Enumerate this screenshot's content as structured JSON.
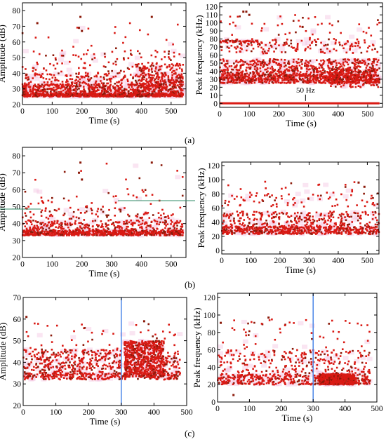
{
  "colors": {
    "points": "#d91a14",
    "dark_points": "#8b1a0a",
    "haze": "#f4c6e2",
    "vline": "#4a86e8"
  },
  "panel_labels": {
    "a": "(a)",
    "b": "(b)",
    "c": "(c)"
  },
  "chart_data": [
    {
      "type": "scatter",
      "panel": "(a)",
      "xlabel": "Time (s)",
      "ylabel": "Amplitude (dB)",
      "xlim": [
        0,
        550
      ],
      "ylim": [
        20,
        85
      ],
      "xticks": [
        0,
        100,
        200,
        300,
        400,
        500
      ],
      "yticks": [
        20,
        30,
        40,
        50,
        60,
        70,
        80
      ],
      "grid": false,
      "annotations": [],
      "bands": [
        {
          "x": [
            0,
            540
          ],
          "y": [
            25,
            27
          ],
          "n": 700
        },
        {
          "x": [
            0,
            540
          ],
          "y": [
            27,
            33
          ],
          "n": 520
        },
        {
          "x": [
            0,
            540
          ],
          "y": [
            33,
            40
          ],
          "n": 220
        },
        {
          "x": [
            380,
            540
          ],
          "y": [
            27,
            46
          ],
          "n": 180
        },
        {
          "x": [
            0,
            540
          ],
          "y": [
            40,
            55
          ],
          "n": 110
        },
        {
          "x": [
            0,
            540
          ],
          "y": [
            55,
            76
          ],
          "n": 18
        }
      ],
      "outliers": [
        {
          "x": 195,
          "y": 76
        },
        {
          "x": 435,
          "y": 76
        },
        {
          "x": 50,
          "y": 72
        },
        {
          "x": 190,
          "y": 69
        },
        {
          "x": 200,
          "y": 67
        }
      ]
    },
    {
      "type": "scatter",
      "panel": "(a)",
      "xlabel": "Time (s)",
      "ylabel": "Peak frequency (kHz)",
      "xlim": [
        0,
        550
      ],
      "ylim": [
        -5,
        125
      ],
      "xticks": [
        0,
        100,
        200,
        300,
        400,
        500
      ],
      "yticks": [
        0,
        10,
        20,
        30,
        40,
        50,
        60,
        70,
        80,
        90,
        100,
        110,
        120
      ],
      "grid": false,
      "annotations": [
        {
          "text": "50 Hz",
          "x": 290,
          "y": 3
        }
      ],
      "baseline": {
        "y": 0,
        "x": [
          0,
          540
        ]
      },
      "bands": [
        {
          "x": [
            0,
            540
          ],
          "y": [
            25,
            36
          ],
          "n": 700
        },
        {
          "x": [
            0,
            540
          ],
          "y": [
            36,
            55
          ],
          "n": 480
        },
        {
          "x": [
            0,
            540
          ],
          "y": [
            62,
            80
          ],
          "n": 160
        },
        {
          "x": [
            0,
            540
          ],
          "y": [
            80,
            110
          ],
          "n": 45
        },
        {
          "x": [
            0,
            130
          ],
          "y": [
            76,
            78
          ],
          "n": 40
        },
        {
          "x": [
            370,
            540
          ],
          "y": [
            20,
            45
          ],
          "n": 160
        }
      ],
      "outliers": [
        {
          "x": 80,
          "y": 114
        },
        {
          "x": 90,
          "y": 114
        },
        {
          "x": 100,
          "y": 110
        },
        {
          "x": 280,
          "y": 95
        }
      ]
    },
    {
      "type": "scatter",
      "panel": "(b)",
      "xlabel": "Time (s)",
      "ylabel": "Amplitude (dB)",
      "xlim": [
        0,
        550
      ],
      "ylim": [
        20,
        85
      ],
      "xticks": [
        0,
        100,
        200,
        300,
        400,
        500
      ],
      "yticks": [
        20,
        30,
        40,
        50,
        60,
        70,
        80
      ],
      "grid": false,
      "annotations": [],
      "bands": [
        {
          "x": [
            0,
            540
          ],
          "y": [
            33,
            36
          ],
          "n": 650
        },
        {
          "x": [
            0,
            540
          ],
          "y": [
            36,
            42
          ],
          "n": 260
        },
        {
          "x": [
            0,
            540
          ],
          "y": [
            42,
            50
          ],
          "n": 90
        },
        {
          "x": [
            0,
            540
          ],
          "y": [
            50,
            60
          ],
          "n": 30
        },
        {
          "x": [
            0,
            540
          ],
          "y": [
            60,
            76
          ],
          "n": 10
        }
      ],
      "outliers": [
        {
          "x": 195,
          "y": 76
        },
        {
          "x": 435,
          "y": 76
        },
        {
          "x": 190,
          "y": 70
        },
        {
          "x": 200,
          "y": 66
        }
      ]
    },
    {
      "type": "scatter",
      "panel": "(b)",
      "xlabel": "Time (s)",
      "ylabel": "Peak frequency (kHz)",
      "xlim": [
        0,
        540
      ],
      "ylim": [
        -5,
        125
      ],
      "xticks": [
        0,
        100,
        200,
        300,
        400,
        500
      ],
      "yticks": [
        0,
        20,
        40,
        60,
        80,
        100,
        120
      ],
      "grid": false,
      "annotations": [],
      "bands": [
        {
          "x": [
            0,
            540
          ],
          "y": [
            23,
            34
          ],
          "n": 520
        },
        {
          "x": [
            0,
            540
          ],
          "y": [
            34,
            55
          ],
          "n": 260
        },
        {
          "x": [
            0,
            540
          ],
          "y": [
            62,
            80
          ],
          "n": 70
        },
        {
          "x": [
            0,
            540
          ],
          "y": [
            80,
            98
          ],
          "n": 20
        }
      ],
      "outliers": [
        {
          "x": 470,
          "y": 96
        },
        {
          "x": 490,
          "y": 90
        }
      ]
    },
    {
      "type": "scatter",
      "panel": "(c)",
      "xlabel": "Time (s)",
      "ylabel": "Amplitude (dB)",
      "xlim": [
        0,
        500
      ],
      "ylim": [
        20,
        70
      ],
      "xticks": [
        0,
        100,
        200,
        300,
        400,
        500
      ],
      "yticks": [
        20,
        30,
        40,
        50,
        60,
        70
      ],
      "grid": false,
      "annotations": [],
      "vline": 300,
      "bands": [
        {
          "x": [
            0,
            300
          ],
          "y": [
            32,
            46
          ],
          "n": 380
        },
        {
          "x": [
            0,
            480
          ],
          "y": [
            32,
            35
          ],
          "n": 200
        },
        {
          "x": [
            310,
            430
          ],
          "y": [
            33,
            50
          ],
          "n": 650
        },
        {
          "x": [
            430,
            480
          ],
          "y": [
            32,
            45
          ],
          "n": 60
        },
        {
          "x": [
            0,
            480
          ],
          "y": [
            46,
            58
          ],
          "n": 45
        }
      ],
      "outliers": [
        {
          "x": 10,
          "y": 61
        },
        {
          "x": 370,
          "y": 59
        }
      ]
    },
    {
      "type": "scatter",
      "panel": "(c)",
      "xlabel": "Time (s)",
      "ylabel": "Peak frequency (kHz)",
      "xlim": [
        0,
        500
      ],
      "ylim": [
        0,
        125
      ],
      "xticks": [
        0,
        100,
        200,
        300,
        400,
        500
      ],
      "yticks": [
        0,
        20,
        40,
        60,
        80,
        100,
        120
      ],
      "grid": false,
      "annotations": [],
      "vline": 300,
      "bands": [
        {
          "x": [
            0,
            480
          ],
          "y": [
            20,
            32
          ],
          "n": 420
        },
        {
          "x": [
            0,
            480
          ],
          "y": [
            32,
            60
          ],
          "n": 240
        },
        {
          "x": [
            320,
            430
          ],
          "y": [
            20,
            32
          ],
          "n": 700
        },
        {
          "x": [
            0,
            480
          ],
          "y": [
            60,
            95
          ],
          "n": 50
        }
      ],
      "outliers": [
        {
          "x": 160,
          "y": 97
        },
        {
          "x": 10,
          "y": 91
        },
        {
          "x": 50,
          "y": 8
        }
      ]
    }
  ]
}
